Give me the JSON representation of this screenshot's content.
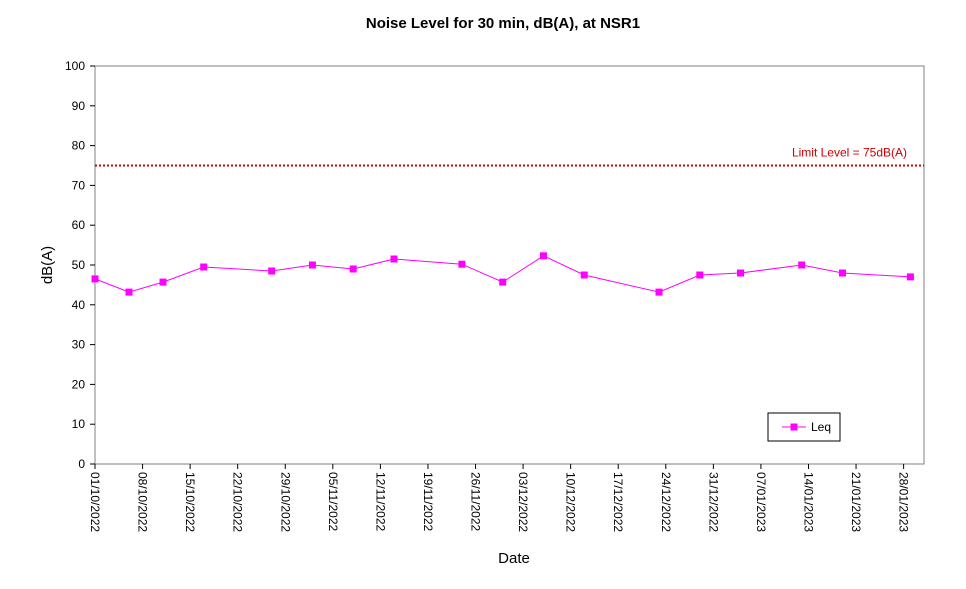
{
  "chart_data": {
    "type": "line",
    "title": "Noise Level for 30 min, dB(A), at NSR1",
    "xlabel": "Date",
    "ylabel": "dB(A)",
    "ylim": [
      0,
      100
    ],
    "yticks": [
      0,
      10,
      20,
      30,
      40,
      50,
      60,
      70,
      80,
      90,
      100
    ],
    "xlim": [
      "2022-10-01",
      "2023-01-31"
    ],
    "xtick_labels": [
      "01/10/2022",
      "08/10/2022",
      "15/10/2022",
      "22/10/2022",
      "29/10/2022",
      "05/11/2022",
      "12/11/2022",
      "19/11/2022",
      "26/11/2022",
      "03/12/2022",
      "10/12/2022",
      "17/12/2022",
      "24/12/2022",
      "31/12/2022",
      "07/01/2023",
      "14/01/2023",
      "21/01/2023",
      "28/01/2023"
    ],
    "xtick_dates": [
      "2022-10-01",
      "2022-10-08",
      "2022-10-15",
      "2022-10-22",
      "2022-10-29",
      "2022-11-05",
      "2022-11-12",
      "2022-11-19",
      "2022-11-26",
      "2022-12-03",
      "2022-12-10",
      "2022-12-17",
      "2022-12-24",
      "2022-12-31",
      "2023-01-07",
      "2023-01-14",
      "2023-01-21",
      "2023-01-28"
    ],
    "series": [
      {
        "name": "Leq",
        "color": "#ff00ff",
        "marker": "square",
        "points": [
          {
            "date": "2022-10-01",
            "y": 46.5
          },
          {
            "date": "2022-10-06",
            "y": 43.2
          },
          {
            "date": "2022-10-11",
            "y": 45.7
          },
          {
            "date": "2022-10-17",
            "y": 49.5
          },
          {
            "date": "2022-10-27",
            "y": 48.5
          },
          {
            "date": "2022-11-02",
            "y": 50.0
          },
          {
            "date": "2022-11-08",
            "y": 49.0
          },
          {
            "date": "2022-11-14",
            "y": 51.5
          },
          {
            "date": "2022-11-24",
            "y": 50.2
          },
          {
            "date": "2022-11-30",
            "y": 45.7
          },
          {
            "date": "2022-12-06",
            "y": 52.3
          },
          {
            "date": "2022-12-12",
            "y": 47.5
          },
          {
            "date": "2022-12-23",
            "y": 43.2
          },
          {
            "date": "2022-12-29",
            "y": 47.5
          },
          {
            "date": "2023-01-04",
            "y": 48.0
          },
          {
            "date": "2023-01-13",
            "y": 50.0
          },
          {
            "date": "2023-01-19",
            "y": 48.0
          },
          {
            "date": "2023-01-29",
            "y": 47.0
          }
        ]
      }
    ],
    "reference_line": {
      "label": "Limit Level  = 75dB(A)",
      "y": 75,
      "color": "#cc0000",
      "style": "dotted"
    },
    "legend": {
      "position": "bottom-right",
      "entries": [
        "Leq"
      ]
    },
    "grid": false
  }
}
